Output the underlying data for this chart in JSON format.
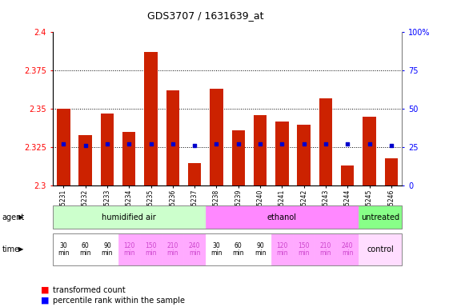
{
  "title": "GDS3707 / 1631639_at",
  "samples": [
    "GSM455231",
    "GSM455232",
    "GSM455233",
    "GSM455234",
    "GSM455235",
    "GSM455236",
    "GSM455237",
    "GSM455238",
    "GSM455239",
    "GSM455240",
    "GSM455241",
    "GSM455242",
    "GSM455243",
    "GSM455244",
    "GSM455245",
    "GSM455246"
  ],
  "bar_values": [
    2.35,
    2.333,
    2.347,
    2.335,
    2.387,
    2.362,
    2.315,
    2.363,
    2.336,
    2.346,
    2.342,
    2.34,
    2.357,
    2.313,
    2.345,
    2.318
  ],
  "blue_values": [
    27,
    26,
    27,
    27,
    27,
    27,
    26,
    27,
    27,
    27,
    27,
    27,
    27,
    27,
    27,
    26
  ],
  "ylim_left": [
    2.3,
    2.4
  ],
  "ylim_right": [
    0,
    100
  ],
  "yticks_left": [
    2.3,
    2.325,
    2.35,
    2.375,
    2.4
  ],
  "yticks_right": [
    0,
    25,
    50,
    75,
    100
  ],
  "bar_color": "#cc2200",
  "dot_color": "#0000cc",
  "bar_base": 2.3,
  "agent_groups": [
    {
      "label": "humidified air",
      "start": 0,
      "end": 7,
      "color": "#ccffcc"
    },
    {
      "label": "ethanol",
      "start": 7,
      "end": 14,
      "color": "#ff88ff"
    },
    {
      "label": "untreated",
      "start": 14,
      "end": 16,
      "color": "#88ff88"
    }
  ],
  "time_labels_per_sample": [
    "30\nmin",
    "60\nmin",
    "90\nmin",
    "120\nmin",
    "150\nmin",
    "210\nmin",
    "240\nmin",
    "30\nmin",
    "60\nmin",
    "90\nmin",
    "120\nmin",
    "150\nmin",
    "210\nmin",
    "240\nmin"
  ],
  "time_colors": [
    "#ffffff",
    "#ffffff",
    "#ffffff",
    "#ffaaff",
    "#ffaaff",
    "#ffaaff",
    "#ffaaff",
    "#ffffff",
    "#ffffff",
    "#ffffff",
    "#ffaaff",
    "#ffaaff",
    "#ffaaff",
    "#ffaaff"
  ],
  "control_color": "#ffddff",
  "legend_items": [
    {
      "label": "transformed count",
      "color": "#cc2200"
    },
    {
      "label": "percentile rank within the sample",
      "color": "#0000cc"
    }
  ]
}
